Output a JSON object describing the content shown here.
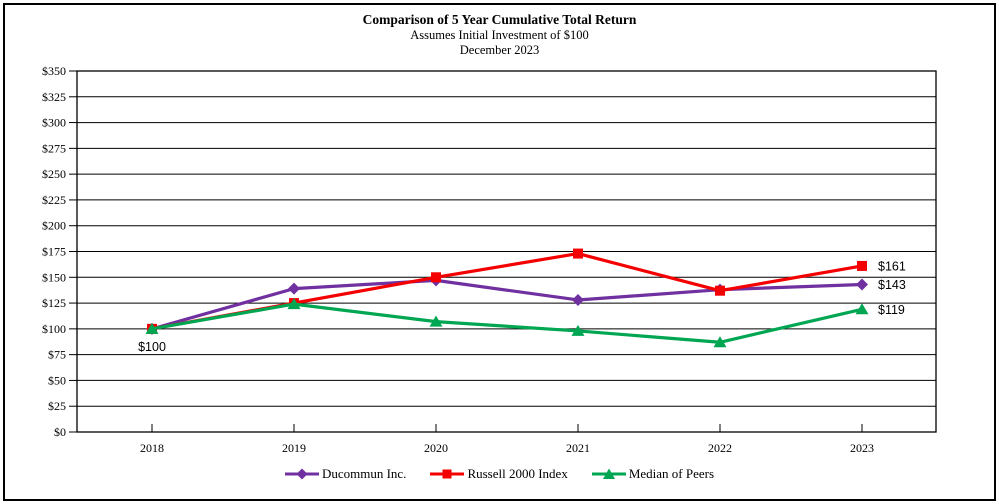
{
  "title": "Comparison of 5 Year Cumulative Total Return",
  "subtitle1": "Assumes Initial Investment of $100",
  "subtitle2": "December 2023",
  "chart_data": {
    "type": "line",
    "categories": [
      "2018",
      "2019",
      "2020",
      "2021",
      "2022",
      "2023"
    ],
    "series": [
      {
        "name": "Ducommun Inc.",
        "color": "#7030A0",
        "marker": "diamond",
        "values": [
          100,
          139,
          147,
          128,
          138,
          143
        ],
        "end_label": "$143"
      },
      {
        "name": "Russell 2000 Index",
        "color": "#F40000",
        "marker": "square",
        "values": [
          100,
          125,
          150,
          173,
          137,
          161
        ],
        "end_label": "$161"
      },
      {
        "name": "Median of Peers",
        "color": "#00A651",
        "marker": "triangle",
        "values": [
          100,
          124,
          107,
          98,
          87,
          119
        ],
        "end_label": "$119"
      }
    ],
    "start_label": "$100",
    "y_axis": {
      "min": 0,
      "max": 350,
      "step": 25,
      "tick_prefix": "$"
    },
    "x_axis_labels": [
      "2018",
      "2019",
      "2020",
      "2021",
      "2022",
      "2023"
    ],
    "grid": "horizontal",
    "legend_position": "bottom",
    "axis_color": "#000000",
    "background_color": "#FFFFFF"
  }
}
